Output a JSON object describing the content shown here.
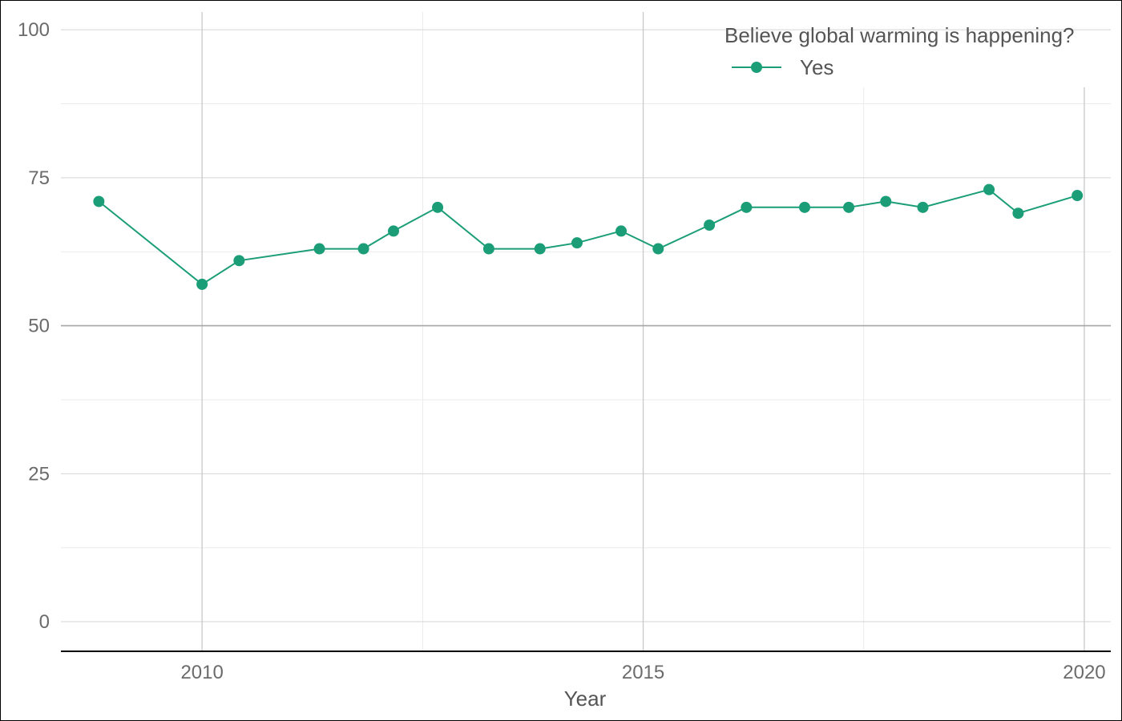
{
  "chart_data": {
    "type": "line",
    "xlabel": "Year",
    "ylabel": "",
    "xlim": [
      2008.4,
      2020.3
    ],
    "ylim": [
      -5,
      103
    ],
    "x_ticks": [
      2010,
      2015,
      2020
    ],
    "y_ticks": [
      0,
      25,
      50,
      75,
      100
    ],
    "x_tick_labels": [
      "2010",
      "2015",
      "2020"
    ],
    "y_tick_labels": [
      "0",
      "25",
      "50",
      "75",
      "100"
    ],
    "grid": true,
    "reference_line_y": 50,
    "legend": {
      "title": "Believe global warming is happening?",
      "position": "top-right"
    },
    "series": [
      {
        "name": "Yes",
        "color": "#1b9e77",
        "points": [
          {
            "x": 2008.83,
            "y": 71
          },
          {
            "x": 2010.0,
            "y": 57
          },
          {
            "x": 2010.42,
            "y": 61
          },
          {
            "x": 2011.33,
            "y": 63
          },
          {
            "x": 2011.83,
            "y": 63
          },
          {
            "x": 2012.17,
            "y": 66
          },
          {
            "x": 2012.67,
            "y": 70
          },
          {
            "x": 2013.25,
            "y": 63
          },
          {
            "x": 2013.83,
            "y": 63
          },
          {
            "x": 2014.25,
            "y": 64
          },
          {
            "x": 2014.75,
            "y": 66
          },
          {
            "x": 2015.17,
            "y": 63
          },
          {
            "x": 2015.75,
            "y": 67
          },
          {
            "x": 2016.17,
            "y": 70
          },
          {
            "x": 2016.83,
            "y": 70
          },
          {
            "x": 2017.33,
            "y": 70
          },
          {
            "x": 2017.75,
            "y": 71
          },
          {
            "x": 2018.17,
            "y": 70
          },
          {
            "x": 2018.92,
            "y": 73
          },
          {
            "x": 2019.25,
            "y": 69
          },
          {
            "x": 2019.92,
            "y": 72
          }
        ]
      }
    ]
  }
}
